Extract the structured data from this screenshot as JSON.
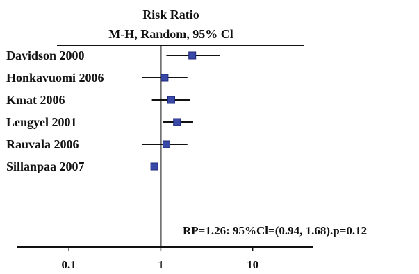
{
  "chart_data": {
    "type": "forest",
    "title": "Risk Ratio",
    "subtitle": "M-H, Random, 95% Cl",
    "scale": "log",
    "xlim": [
      0.027,
      45
    ],
    "x_ticks": [
      {
        "value": 0.1,
        "label": "0.1"
      },
      {
        "value": 1,
        "label": "1"
      },
      {
        "value": 10,
        "label": "10"
      }
    ],
    "reference_value": 1,
    "studies": [
      {
        "name": "Davidson 2000",
        "rr": 2.2,
        "ci_low": 1.15,
        "ci_high": 4.4
      },
      {
        "name": "Honkavuomi 2006",
        "rr": 1.1,
        "ci_low": 0.62,
        "ci_high": 1.95
      },
      {
        "name": "Kmat 2006",
        "rr": 1.3,
        "ci_low": 0.8,
        "ci_high": 2.1
      },
      {
        "name": "Lengyel 2001",
        "rr": 1.5,
        "ci_low": 1.05,
        "ci_high": 2.25
      },
      {
        "name": "Rauvala 2006",
        "rr": 1.15,
        "ci_low": 0.62,
        "ci_high": 1.95
      },
      {
        "name": "Sillanpaa 2007",
        "rr": 0.85,
        "ci_low": 0.8,
        "ci_high": 0.92
      }
    ],
    "summary_text": "RP=1.26:  95%Cl=(0.94, 1.68).p=0.12",
    "colors": {
      "marker": "#3a48a8",
      "marker_stroke": "#1f2a78",
      "line": "#111111",
      "text": "#111111"
    }
  }
}
